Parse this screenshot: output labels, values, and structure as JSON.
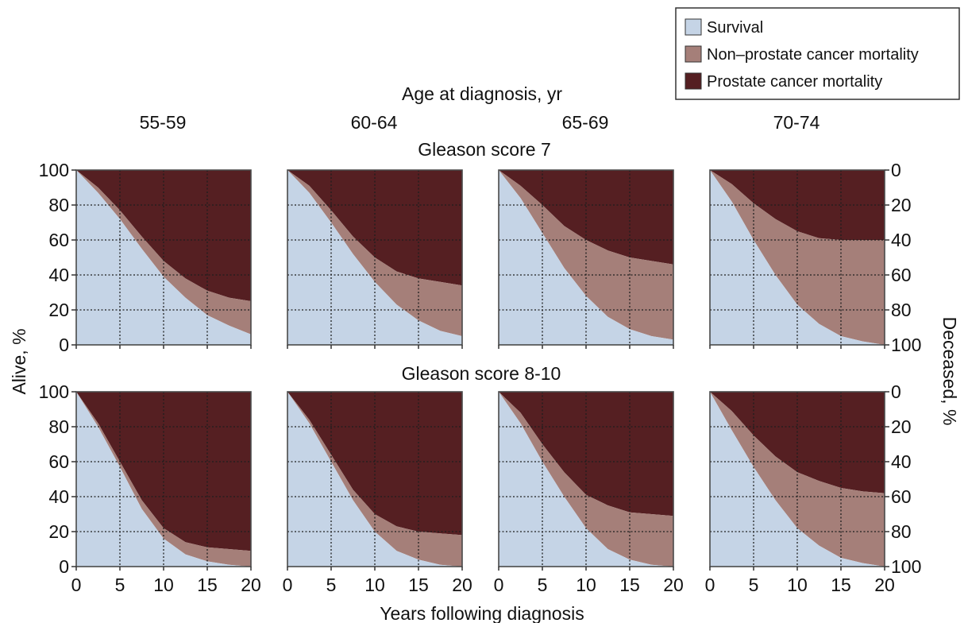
{
  "chart_data": {
    "type": "area",
    "title": "Age at diagnosis, yr",
    "xlabel": "Years following diagnosis",
    "ylabel_left": "Alive, %",
    "ylabel_right": "Deceased, %",
    "xlim": [
      0,
      20
    ],
    "ylim": [
      0,
      100
    ],
    "x_ticks": [
      "0",
      "5",
      "10",
      "15",
      "20"
    ],
    "y_ticks_left": [
      "0",
      "20",
      "40",
      "60",
      "80",
      "100"
    ],
    "y_ticks_right": [
      "100",
      "80",
      "60",
      "40",
      "20",
      "0"
    ],
    "grid": true,
    "legend": {
      "position": "top-right",
      "items": [
        {
          "label": "Survival",
          "color": "#c5d4e6"
        },
        {
          "label": "Non–prostate cancer mortality",
          "color": "#a57f79"
        },
        {
          "label": "Prostate cancer mortality",
          "color": "#551f22"
        }
      ]
    },
    "x": [
      0,
      2.5,
      5,
      7.5,
      10,
      12.5,
      15,
      17.5,
      20
    ],
    "columns": [
      "55-59",
      "60-64",
      "65-69",
      "70-74"
    ],
    "rows": [
      {
        "label": "Gleason score 7",
        "panels": [
          {
            "age": "55-59",
            "survival": [
              100,
              87,
              72,
              55,
              39,
              27,
              17,
              11,
              6
            ],
            "survival_plus_non_pc": [
              100,
              90,
              77,
              62,
              48,
              38,
              31,
              27,
              25
            ]
          },
          {
            "age": "60-64",
            "survival": [
              100,
              87,
              70,
              52,
              36,
              23,
              14,
              8,
              5
            ],
            "survival_plus_non_pc": [
              100,
              91,
              77,
              62,
              50,
              42,
              38,
              36,
              34
            ]
          },
          {
            "age": "65-69",
            "survival": [
              100,
              84,
              64,
              44,
              28,
              16,
              9,
              5,
              3
            ],
            "survival_plus_non_pc": [
              100,
              91,
              80,
              68,
              60,
              54,
              50,
              48,
              46
            ]
          },
          {
            "age": "70-74",
            "survival": [
              100,
              82,
              60,
              40,
              23,
              12,
              5,
              2,
              0
            ],
            "survival_plus_non_pc": [
              100,
              92,
              81,
              72,
              65,
              61,
              60,
              60,
              60
            ]
          }
        ]
      },
      {
        "label": "Gleason score 8-10",
        "panels": [
          {
            "age": "55-59",
            "survival": [
              100,
              80,
              57,
              33,
              16,
              7,
              3,
              1,
              0
            ],
            "survival_plus_non_pc": [
              100,
              82,
              60,
              38,
              22,
              14,
              11,
              10,
              9
            ]
          },
          {
            "age": "60-64",
            "survival": [
              100,
              82,
              60,
              38,
              20,
              9,
              4,
              1,
              0
            ],
            "survival_plus_non_pc": [
              100,
              84,
              64,
              44,
              30,
              23,
              20,
              19,
              18
            ]
          },
          {
            "age": "65-69",
            "survival": [
              100,
              82,
              60,
              40,
              22,
              10,
              4,
              1,
              0
            ],
            "survival_plus_non_pc": [
              100,
              88,
              70,
              54,
              41,
              35,
              31,
              30,
              29
            ]
          },
          {
            "age": "70-74",
            "survival": [
              100,
              78,
              57,
              38,
              22,
              12,
              5,
              2,
              0
            ],
            "survival_plus_non_pc": [
              100,
              89,
              75,
              63,
              54,
              49,
              45,
              43,
              42
            ]
          }
        ]
      }
    ]
  }
}
